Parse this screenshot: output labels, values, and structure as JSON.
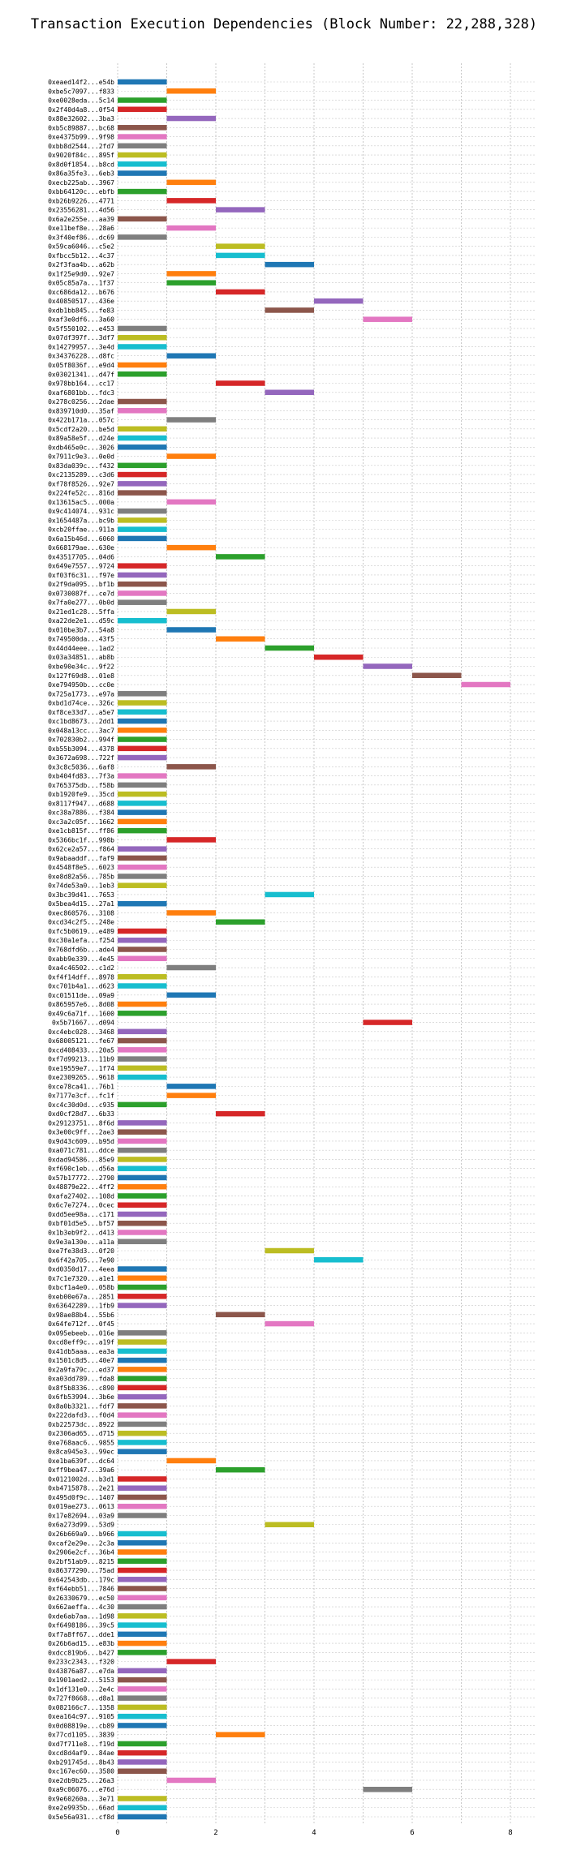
{
  "chart_data": {
    "type": "bar",
    "orientation": "horizontal",
    "title": "Transaction Execution Dependencies (Block Number: 22,288,328)",
    "xlabel": "",
    "ylabel": "",
    "xlim": [
      0,
      8.5
    ],
    "xticks": [
      0,
      2,
      4,
      6,
      8
    ],
    "grid": "dotted",
    "palette": [
      "#1f77b4",
      "#ff7f0e",
      "#2ca02c",
      "#d62728",
      "#9467bd",
      "#8c564b",
      "#e377c2",
      "#7f7f7f",
      "#bcbd22",
      "#17becf"
    ],
    "transactions": [
      {
        "label": "0xeaed14f2...e54b",
        "start": 0,
        "end": 1
      },
      {
        "label": "0xbe5c7097...f833",
        "start": 1,
        "end": 2
      },
      {
        "label": "0xe0028eda...5c14",
        "start": 0,
        "end": 1
      },
      {
        "label": "0x2f40d4a8...0f54",
        "start": 0,
        "end": 1
      },
      {
        "label": "0x88e32602...3ba3",
        "start": 1,
        "end": 2
      },
      {
        "label": "0xb5c89887...bc68",
        "start": 0,
        "end": 1
      },
      {
        "label": "0xe4375b99...9f98",
        "start": 0,
        "end": 1
      },
      {
        "label": "0xbb8d2544...2fd7",
        "start": 0,
        "end": 1
      },
      {
        "label": "0x9020f84c...895f",
        "start": 0,
        "end": 1
      },
      {
        "label": "0x8d0f1854...b8cd",
        "start": 0,
        "end": 1
      },
      {
        "label": "0x86a35fe3...6eb3",
        "start": 0,
        "end": 1
      },
      {
        "label": "0xecb225ab...3967",
        "start": 1,
        "end": 2
      },
      {
        "label": "0xbb64120c...ebfb",
        "start": 0,
        "end": 1
      },
      {
        "label": "0xb26b9226...4771",
        "start": 1,
        "end": 2
      },
      {
        "label": "0x23556281...4d56",
        "start": 2,
        "end": 3
      },
      {
        "label": "0x6a2e255e...aa39",
        "start": 0,
        "end": 1
      },
      {
        "label": "0xe11bef8e...28a6",
        "start": 1,
        "end": 2
      },
      {
        "label": "0x3f40ef86...dc69",
        "start": 0,
        "end": 1
      },
      {
        "label": "0x59ca6046...c5e2",
        "start": 2,
        "end": 3
      },
      {
        "label": "0xfbcc5b12...4c37",
        "start": 2,
        "end": 3
      },
      {
        "label": "0x2f3faa4b...a62b",
        "start": 3,
        "end": 4
      },
      {
        "label": "0x1f25e9d0...92e7",
        "start": 1,
        "end": 2
      },
      {
        "label": "0x05c85a7a...1f37",
        "start": 1,
        "end": 2
      },
      {
        "label": "0xc686da12...b676",
        "start": 2,
        "end": 3
      },
      {
        "label": "0x40850517...436e",
        "start": 4,
        "end": 5
      },
      {
        "label": "0xdb1bb845...fe83",
        "start": 3,
        "end": 4
      },
      {
        "label": "0xaf3e0df6...3a60",
        "start": 5,
        "end": 6
      },
      {
        "label": "0x5f550102...e453",
        "start": 0,
        "end": 1
      },
      {
        "label": "0x07df397f...3df7",
        "start": 0,
        "end": 1
      },
      {
        "label": "0x14279957...3e4d",
        "start": 0,
        "end": 1
      },
      {
        "label": "0x34376228...d8fc",
        "start": 1,
        "end": 2
      },
      {
        "label": "0x05f8036f...e9d4",
        "start": 0,
        "end": 1
      },
      {
        "label": "0x03021341...d47f",
        "start": 0,
        "end": 1
      },
      {
        "label": "0x978bb164...cc17",
        "start": 2,
        "end": 3
      },
      {
        "label": "0xaf6801bb...fdc3",
        "start": 3,
        "end": 4
      },
      {
        "label": "0x278c0256...2dae",
        "start": 0,
        "end": 1
      },
      {
        "label": "0x839710d0...35af",
        "start": 0,
        "end": 1
      },
      {
        "label": "0x422b171a...057c",
        "start": 1,
        "end": 2
      },
      {
        "label": "0x5cdf2a20...be5d",
        "start": 0,
        "end": 1
      },
      {
        "label": "0x89a58e5f...d24e",
        "start": 0,
        "end": 1
      },
      {
        "label": "0xdb465e0c...3026",
        "start": 0,
        "end": 1
      },
      {
        "label": "0x7911c9e3...0e0d",
        "start": 1,
        "end": 2
      },
      {
        "label": "0x83da039c...f432",
        "start": 0,
        "end": 1
      },
      {
        "label": "0xc2135289...c3d6",
        "start": 0,
        "end": 1
      },
      {
        "label": "0xf78f8526...92e7",
        "start": 0,
        "end": 1
      },
      {
        "label": "0x224fe52c...816d",
        "start": 0,
        "end": 1
      },
      {
        "label": "0x13615ac5...000a",
        "start": 1,
        "end": 2
      },
      {
        "label": "0x9c414074...931c",
        "start": 0,
        "end": 1
      },
      {
        "label": "0x1654487a...bc9b",
        "start": 0,
        "end": 1
      },
      {
        "label": "0xcb20ffae...911a",
        "start": 0,
        "end": 1
      },
      {
        "label": "0x6a15b46d...6060",
        "start": 0,
        "end": 1
      },
      {
        "label": "0x668179ae...630e",
        "start": 1,
        "end": 2
      },
      {
        "label": "0x43517705...04d6",
        "start": 2,
        "end": 3
      },
      {
        "label": "0x649e7557...9724",
        "start": 0,
        "end": 1
      },
      {
        "label": "0xf03f6c31...f97e",
        "start": 0,
        "end": 1
      },
      {
        "label": "0x2f9da095...bf1b",
        "start": 0,
        "end": 1
      },
      {
        "label": "0x0730087f...ce7d",
        "start": 0,
        "end": 1
      },
      {
        "label": "0x7fa0e277...0b0d",
        "start": 0,
        "end": 1
      },
      {
        "label": "0x21ed1c28...5ffa",
        "start": 1,
        "end": 2
      },
      {
        "label": "0xa22de2e1...d59c",
        "start": 0,
        "end": 1
      },
      {
        "label": "0x010be3b7...54a8",
        "start": 1,
        "end": 2
      },
      {
        "label": "0x749500da...43f5",
        "start": 2,
        "end": 3
      },
      {
        "label": "0x44d44eee...1ad2",
        "start": 3,
        "end": 4
      },
      {
        "label": "0x03a34851...ab8b",
        "start": 4,
        "end": 5
      },
      {
        "label": "0xbe90e34c...9f22",
        "start": 5,
        "end": 6
      },
      {
        "label": "0x127f69d8...01e8",
        "start": 6,
        "end": 7
      },
      {
        "label": "0xe794950b...cc0e",
        "start": 7,
        "end": 8
      },
      {
        "label": "0x725a1773...e97a",
        "start": 0,
        "end": 1
      },
      {
        "label": "0xbd1d74ce...326c",
        "start": 0,
        "end": 1
      },
      {
        "label": "0xf8ce33d7...a5e7",
        "start": 0,
        "end": 1
      },
      {
        "label": "0xc1bd8673...2dd1",
        "start": 0,
        "end": 1
      },
      {
        "label": "0x048a13cc...3ac7",
        "start": 0,
        "end": 1
      },
      {
        "label": "0x702830b2...994f",
        "start": 0,
        "end": 1
      },
      {
        "label": "0xb55b3094...4378",
        "start": 0,
        "end": 1
      },
      {
        "label": "0x3672a698...722f",
        "start": 0,
        "end": 1
      },
      {
        "label": "0x3c8c5036...6af8",
        "start": 1,
        "end": 2
      },
      {
        "label": "0xb404fd83...7f3a",
        "start": 0,
        "end": 1
      },
      {
        "label": "0x765375db...f58b",
        "start": 0,
        "end": 1
      },
      {
        "label": "0xb1920fe9...35cd",
        "start": 0,
        "end": 1
      },
      {
        "label": "0x8117f947...d688",
        "start": 0,
        "end": 1
      },
      {
        "label": "0xc38a7886...f384",
        "start": 0,
        "end": 1
      },
      {
        "label": "0xc3a2c05f...1662",
        "start": 0,
        "end": 1
      },
      {
        "label": "0xe1cb815f...ff86",
        "start": 0,
        "end": 1
      },
      {
        "label": "0x5366bc1f...998b",
        "start": 1,
        "end": 2
      },
      {
        "label": "0x62ce2a57...f864",
        "start": 0,
        "end": 1
      },
      {
        "label": "0x9abaaddf...faf9",
        "start": 0,
        "end": 1
      },
      {
        "label": "0x4548f8e5...6023",
        "start": 0,
        "end": 1
      },
      {
        "label": "0xe8d82a56...785b",
        "start": 0,
        "end": 1
      },
      {
        "label": "0x74de53a0...1eb3",
        "start": 0,
        "end": 1
      },
      {
        "label": "0x3bc39d41...7653",
        "start": 3,
        "end": 4
      },
      {
        "label": "0x5bea4d15...27a1",
        "start": 0,
        "end": 1
      },
      {
        "label": "0xec860576...3108",
        "start": 1,
        "end": 2
      },
      {
        "label": "0xcd34c2f5...248e",
        "start": 2,
        "end": 3
      },
      {
        "label": "0xfc5b0619...e489",
        "start": 0,
        "end": 1
      },
      {
        "label": "0xc30a1efa...f254",
        "start": 0,
        "end": 1
      },
      {
        "label": "0x768dfd6b...ade4",
        "start": 0,
        "end": 1
      },
      {
        "label": "0xabb9e339...4e45",
        "start": 0,
        "end": 1
      },
      {
        "label": "0xa4c46502...c1d2",
        "start": 1,
        "end": 2
      },
      {
        "label": "0xf4f14dff...8978",
        "start": 0,
        "end": 1
      },
      {
        "label": "0xc701b4a1...d623",
        "start": 0,
        "end": 1
      },
      {
        "label": "0xc01511de...09a9",
        "start": 1,
        "end": 2
      },
      {
        "label": "0x865957e6...8d08",
        "start": 0,
        "end": 1
      },
      {
        "label": "0x49c6a71f...1600",
        "start": 0,
        "end": 1
      },
      {
        "label": "0x5b71667...d094",
        "start": 5,
        "end": 6
      },
      {
        "label": "0xc4ebc028...3468",
        "start": 0,
        "end": 1
      },
      {
        "label": "0x68005121...fe67",
        "start": 0,
        "end": 1
      },
      {
        "label": "0xcd408433...20a5",
        "start": 0,
        "end": 1
      },
      {
        "label": "0xf7d99213...11b9",
        "start": 0,
        "end": 1
      },
      {
        "label": "0xe19559e7...1f74",
        "start": 0,
        "end": 1
      },
      {
        "label": "0xe2309265...9618",
        "start": 0,
        "end": 1
      },
      {
        "label": "0xce78ca41...76b1",
        "start": 1,
        "end": 2
      },
      {
        "label": "0x7177e3cf...fc1f",
        "start": 1,
        "end": 2
      },
      {
        "label": "0xc4c30d0d...c935",
        "start": 0,
        "end": 1
      },
      {
        "label": "0xd0cf28d7...6b33",
        "start": 2,
        "end": 3
      },
      {
        "label": "0x29123751...8f6d",
        "start": 0,
        "end": 1
      },
      {
        "label": "0x3e00c9ff...2ae3",
        "start": 0,
        "end": 1
      },
      {
        "label": "0x9d43c609...b95d",
        "start": 0,
        "end": 1
      },
      {
        "label": "0xa071c781...ddce",
        "start": 0,
        "end": 1
      },
      {
        "label": "0xdad94586...85e9",
        "start": 0,
        "end": 1
      },
      {
        "label": "0xf690c1eb...d56a",
        "start": 0,
        "end": 1
      },
      {
        "label": "0x57b17772...2790",
        "start": 0,
        "end": 1
      },
      {
        "label": "0x48879e22...4ff2",
        "start": 0,
        "end": 1
      },
      {
        "label": "0xafa27402...108d",
        "start": 0,
        "end": 1
      },
      {
        "label": "0x6c7e7274...0cec",
        "start": 0,
        "end": 1
      },
      {
        "label": "0xdd5ee98a...c171",
        "start": 0,
        "end": 1
      },
      {
        "label": "0xbf01d5e5...bf57",
        "start": 0,
        "end": 1
      },
      {
        "label": "0x1b3eb9f2...d413",
        "start": 0,
        "end": 1
      },
      {
        "label": "0x9e3a130e...a11a",
        "start": 0,
        "end": 1
      },
      {
        "label": "0xe7fe38d3...0f20",
        "start": 3,
        "end": 4
      },
      {
        "label": "0x6f42a705...7e90",
        "start": 4,
        "end": 5
      },
      {
        "label": "0xd0350d17...4eea",
        "start": 0,
        "end": 1
      },
      {
        "label": "0x7c1e7320...a1e1",
        "start": 0,
        "end": 1
      },
      {
        "label": "0xbcf1a4e0...058b",
        "start": 0,
        "end": 1
      },
      {
        "label": "0xeb00e67a...2851",
        "start": 0,
        "end": 1
      },
      {
        "label": "0x63642289...1fb9",
        "start": 0,
        "end": 1
      },
      {
        "label": "0x98ae88b4...55b6",
        "start": 2,
        "end": 3
      },
      {
        "label": "0x64fe712f...0f45",
        "start": 3,
        "end": 4
      },
      {
        "label": "0x095ebeeb...016e",
        "start": 0,
        "end": 1
      },
      {
        "label": "0xcd8eff9c...a19f",
        "start": 0,
        "end": 1
      },
      {
        "label": "0x41db5aaa...ea3a",
        "start": 0,
        "end": 1
      },
      {
        "label": "0x1501c8d5...40e7",
        "start": 0,
        "end": 1
      },
      {
        "label": "0x2a9fa79c...ed37",
        "start": 0,
        "end": 1
      },
      {
        "label": "0xa03dd789...fda8",
        "start": 0,
        "end": 1
      },
      {
        "label": "0x8f5b8336...c890",
        "start": 0,
        "end": 1
      },
      {
        "label": "0x6fb53994...3b6e",
        "start": 0,
        "end": 1
      },
      {
        "label": "0x8a0b3321...fdf7",
        "start": 0,
        "end": 1
      },
      {
        "label": "0x222dafd3...f0d4",
        "start": 0,
        "end": 1
      },
      {
        "label": "0xb22573dc...8922",
        "start": 0,
        "end": 1
      },
      {
        "label": "0x2306ad65...d715",
        "start": 0,
        "end": 1
      },
      {
        "label": "0xe768aac6...9855",
        "start": 0,
        "end": 1
      },
      {
        "label": "0x8ca945e3...99ec",
        "start": 0,
        "end": 1
      },
      {
        "label": "0xe1ba639f...dc64",
        "start": 1,
        "end": 2
      },
      {
        "label": "0xff9bea47...39a6",
        "start": 2,
        "end": 3
      },
      {
        "label": "0x0121002d...b3d1",
        "start": 0,
        "end": 1
      },
      {
        "label": "0xb4715878...2e21",
        "start": 0,
        "end": 1
      },
      {
        "label": "0x495d0f9c...1407",
        "start": 0,
        "end": 1
      },
      {
        "label": "0x019ae273...0613",
        "start": 0,
        "end": 1
      },
      {
        "label": "0x17e82694...03a9",
        "start": 0,
        "end": 1
      },
      {
        "label": "0x6a273d99...53d9",
        "start": 3,
        "end": 4
      },
      {
        "label": "0x26b669a9...b966",
        "start": 0,
        "end": 1
      },
      {
        "label": "0xcaf2e29e...2c3a",
        "start": 0,
        "end": 1
      },
      {
        "label": "0x2906e2cf...36b4",
        "start": 0,
        "end": 1
      },
      {
        "label": "0x2bf51ab9...8215",
        "start": 0,
        "end": 1
      },
      {
        "label": "0x86377290...75ad",
        "start": 0,
        "end": 1
      },
      {
        "label": "0x642543db...179c",
        "start": 0,
        "end": 1
      },
      {
        "label": "0xf64ebb51...7846",
        "start": 0,
        "end": 1
      },
      {
        "label": "0x26330679...ec50",
        "start": 0,
        "end": 1
      },
      {
        "label": "0x662aeffa...4c30",
        "start": 0,
        "end": 1
      },
      {
        "label": "0xde6ab7aa...1d98",
        "start": 0,
        "end": 1
      },
      {
        "label": "0xf6498186...39c5",
        "start": 0,
        "end": 1
      },
      {
        "label": "0xf7a8ff67...dde1",
        "start": 0,
        "end": 1
      },
      {
        "label": "0x26b6ad15...e83b",
        "start": 0,
        "end": 1
      },
      {
        "label": "0xdcc819b6...b427",
        "start": 0,
        "end": 1
      },
      {
        "label": "0x233c2343...f320",
        "start": 1,
        "end": 2
      },
      {
        "label": "0x43876a87...e7da",
        "start": 0,
        "end": 1
      },
      {
        "label": "0x1901aed2...5153",
        "start": 0,
        "end": 1
      },
      {
        "label": "0x1df131e0...2e4c",
        "start": 0,
        "end": 1
      },
      {
        "label": "0x727f8668...d8a1",
        "start": 0,
        "end": 1
      },
      {
        "label": "0x082166c7...1358",
        "start": 0,
        "end": 1
      },
      {
        "label": "0xea164c97...9105",
        "start": 0,
        "end": 1
      },
      {
        "label": "0x0d08819e...cb89",
        "start": 0,
        "end": 1
      },
      {
        "label": "0x77cd1105...3839",
        "start": 2,
        "end": 3
      },
      {
        "label": "0xd7f711e8...f19d",
        "start": 0,
        "end": 1
      },
      {
        "label": "0xcd8d4af9...84ae",
        "start": 0,
        "end": 1
      },
      {
        "label": "0xb291745d...8b43",
        "start": 0,
        "end": 1
      },
      {
        "label": "0xc167ec60...3580",
        "start": 0,
        "end": 1
      },
      {
        "label": "0xe2db9b25...26a3",
        "start": 1,
        "end": 2
      },
      {
        "label": "0xa9c06076...e76d",
        "start": 5,
        "end": 6
      },
      {
        "label": "0x9e60260a...3e71",
        "start": 0,
        "end": 1
      },
      {
        "label": "0xe2e9935b...66ad",
        "start": 0,
        "end": 1
      },
      {
        "label": "0x5e56a931...cf8d",
        "start": 0,
        "end": 1
      }
    ]
  }
}
